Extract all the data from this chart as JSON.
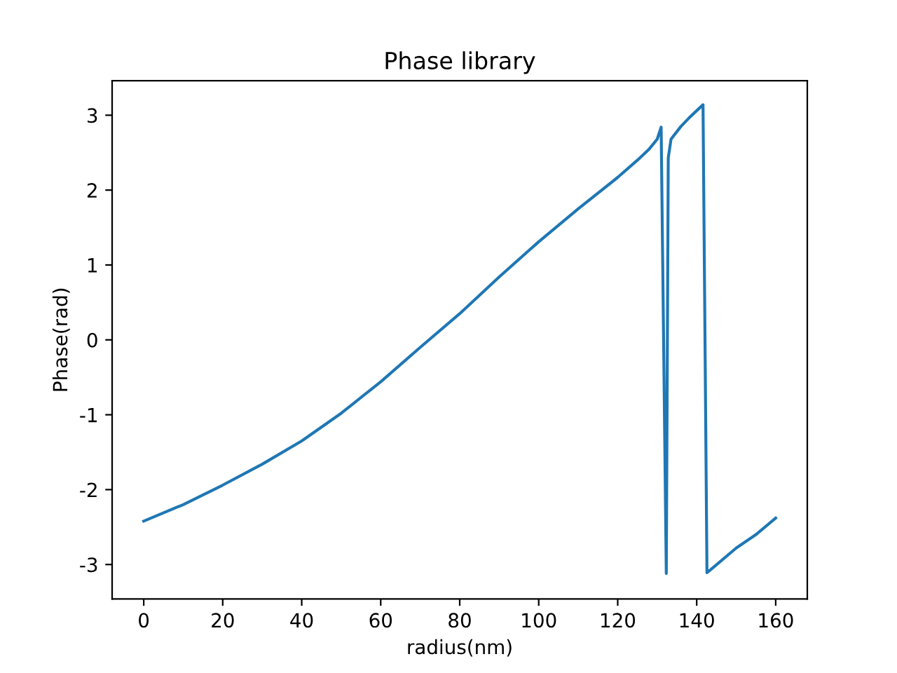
{
  "chart_data": {
    "type": "line",
    "title": "Phase library",
    "xlabel": "radius(nm)",
    "ylabel": "Phase(rad)",
    "series": [
      {
        "color": "#1f77b4",
        "x": [
          0,
          10,
          20,
          30,
          40,
          50,
          60,
          70,
          80,
          90,
          100,
          110,
          120,
          125,
          128,
          130,
          131,
          132.3,
          132.8,
          133.5,
          136,
          138,
          141.6,
          142.6,
          150,
          155,
          160
        ],
        "values": [
          -2.42,
          -2.2,
          -1.94,
          -1.66,
          -1.35,
          -0.98,
          -0.56,
          -0.1,
          0.35,
          0.84,
          1.31,
          1.75,
          2.17,
          2.4,
          2.55,
          2.68,
          2.84,
          -3.12,
          2.43,
          2.68,
          2.85,
          2.96,
          3.14,
          -3.11,
          -2.78,
          -2.6,
          -2.38
        ]
      }
    ],
    "xlim": [
      -8,
      168
    ],
    "ylim": [
      -3.46,
      3.46
    ],
    "xticks": [
      0,
      20,
      40,
      60,
      80,
      100,
      120,
      140,
      160
    ],
    "yticks": [
      -3,
      -2,
      -1,
      0,
      1,
      2,
      3
    ],
    "grid": false,
    "legend": false
  }
}
